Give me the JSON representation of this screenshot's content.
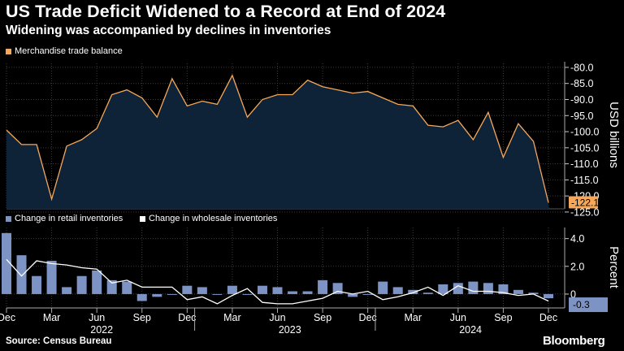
{
  "title": "US Trade Deficit Widened to a Record at End of 2024",
  "subtitle": "Widening was accompanied by declines in inventories",
  "source": "Source: Census Bureau",
  "brand": "Bloomberg",
  "colors": {
    "background": "#000000",
    "trade_line": "#f5a85a",
    "trade_fill": "#0e2238",
    "retail_bar": "#7c93c4",
    "wholesale_line": "#ffffff",
    "grid": "#3d3d3d"
  },
  "chart_data": [
    {
      "type": "area",
      "legend": [
        "Merchandise trade balance"
      ],
      "ylabel": "USD billions",
      "ylim": [
        -124,
        -78
      ],
      "yticks": [
        -80,
        -85,
        -90,
        -95,
        -100,
        -105,
        -110,
        -115,
        -120,
        -125
      ],
      "ytick_labels": [
        "-80.0",
        "-85.0",
        "-90.0",
        "-95.0",
        "-100.0",
        "-105.0",
        "-110.0",
        "-115.0",
        "-120.0",
        "-125.0"
      ],
      "last_value_label": "-122.1",
      "x": [
        "2021-12",
        "2022-01",
        "2022-02",
        "2022-03",
        "2022-04",
        "2022-05",
        "2022-06",
        "2022-07",
        "2022-08",
        "2022-09",
        "2022-10",
        "2022-11",
        "2022-12",
        "2023-01",
        "2023-02",
        "2023-03",
        "2023-04",
        "2023-05",
        "2023-06",
        "2023-07",
        "2023-08",
        "2023-09",
        "2023-10",
        "2023-11",
        "2023-12",
        "2024-01",
        "2024-02",
        "2024-03",
        "2024-04",
        "2024-05",
        "2024-06",
        "2024-07",
        "2024-08",
        "2024-09",
        "2024-10",
        "2024-11",
        "2024-12"
      ],
      "series": [
        {
          "name": "Merchandise trade balance",
          "values": [
            -99.5,
            -104.0,
            -104.0,
            -121.0,
            -104.5,
            -102.5,
            -99.0,
            -88.5,
            -87.0,
            -89.5,
            -95.5,
            -83.5,
            -92.0,
            -90.5,
            -91.5,
            -82.5,
            -95.5,
            -90.0,
            -88.5,
            -88.5,
            -84.0,
            -86.0,
            -87.0,
            -88.0,
            -87.5,
            -89.5,
            -91.5,
            -92.0,
            -98.0,
            -98.5,
            -96.5,
            -102.5,
            -94.0,
            -108.0,
            -97.5,
            -103.0,
            -122.1
          ]
        }
      ]
    },
    {
      "type": "bar",
      "legend": [
        "Change in retail inventories",
        "Change in wholesale inventories"
      ],
      "ylabel": "Percent",
      "ylim": [
        -1.0,
        4.8
      ],
      "yticks": [
        4.0,
        2.0,
        0.0
      ],
      "ytick_labels": [
        "4.0",
        "2.0",
        "0"
      ],
      "last_value_label": "-0.3",
      "x_ticks": [
        "Dec",
        "Mar",
        "Jun",
        "Sep",
        "Dec",
        "Mar",
        "Jun",
        "Sep",
        "Dec",
        "Mar",
        "Jun",
        "Sep",
        "Dec"
      ],
      "x_years": [
        "2022",
        "2023",
        "2024"
      ],
      "x": [
        "2021-12",
        "2022-01",
        "2022-02",
        "2022-03",
        "2022-04",
        "2022-05",
        "2022-06",
        "2022-07",
        "2022-08",
        "2022-09",
        "2022-10",
        "2022-11",
        "2022-12",
        "2023-01",
        "2023-02",
        "2023-03",
        "2023-04",
        "2023-05",
        "2023-06",
        "2023-07",
        "2023-08",
        "2023-09",
        "2023-10",
        "2023-11",
        "2023-12",
        "2024-01",
        "2024-02",
        "2024-03",
        "2024-04",
        "2024-05",
        "2024-06",
        "2024-07",
        "2024-08",
        "2024-09",
        "2024-10",
        "2024-11",
        "2024-12"
      ],
      "series": [
        {
          "name": "Change in retail inventories",
          "values": [
            4.4,
            2.8,
            1.3,
            2.4,
            0.5,
            1.3,
            1.7,
            1.0,
            0.9,
            -0.5,
            -0.2,
            0.0,
            0.6,
            0.5,
            0.0,
            0.6,
            0.0,
            0.6,
            0.5,
            0.2,
            0.2,
            1.0,
            0.8,
            -0.2,
            0.0,
            0.9,
            0.5,
            0.3,
            0.1,
            0.7,
            0.8,
            0.9,
            0.8,
            0.7,
            0.3,
            0.1,
            -0.3
          ]
        },
        {
          "name": "Change in wholesale inventories",
          "values": [
            2.5,
            1.3,
            2.4,
            2.2,
            2.1,
            1.9,
            1.8,
            0.8,
            1.0,
            0.5,
            0.5,
            0.5,
            -0.4,
            -0.2,
            -0.7,
            -0.1,
            0.4,
            -0.6,
            -0.7,
            -0.7,
            -0.5,
            -0.3,
            0.2,
            0.0,
            0.2,
            -0.4,
            -0.2,
            0.1,
            0.5,
            -0.1,
            0.6,
            0.2,
            0.2,
            0.1,
            -0.1,
            0.0,
            -0.5
          ]
        }
      ]
    }
  ]
}
